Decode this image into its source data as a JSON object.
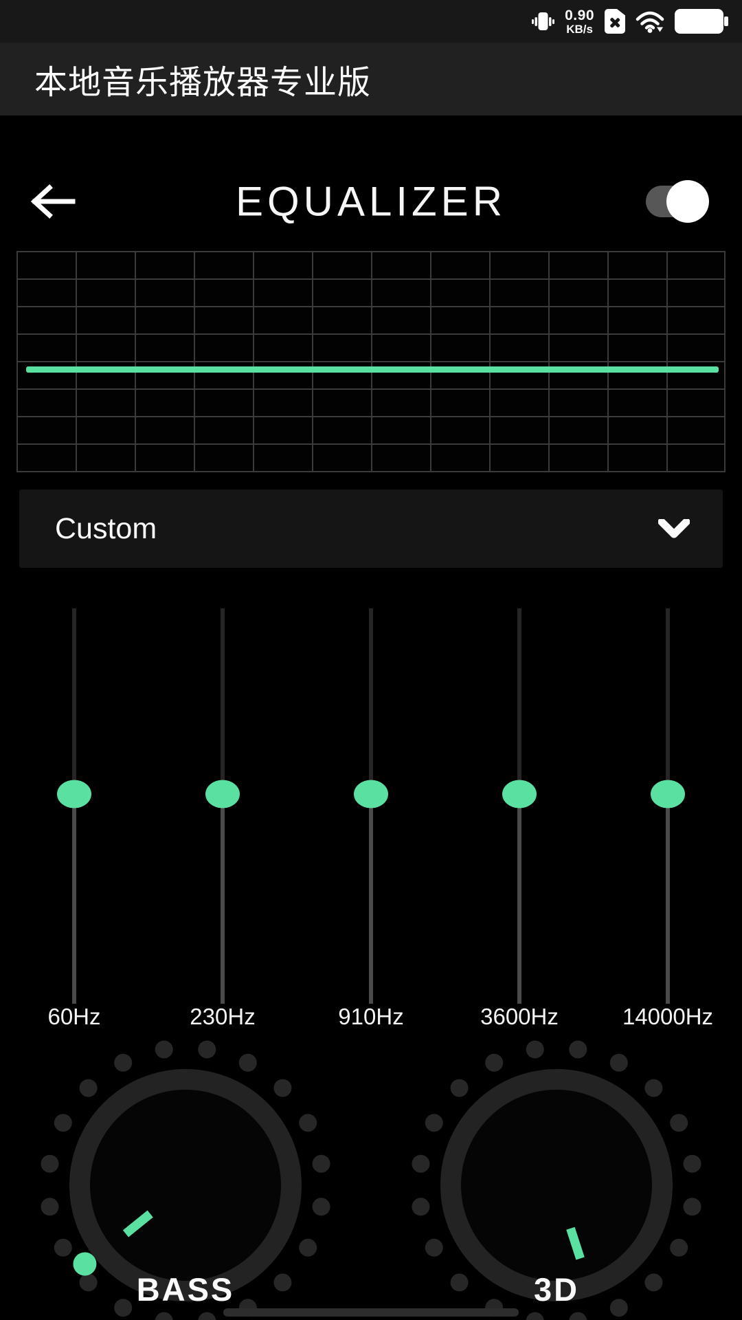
{
  "colors": {
    "accent": "#5ae0a0",
    "background": "#000000",
    "status_bar_bg": "#181818",
    "app_bar_bg": "#212121",
    "panel_bg": "#151515"
  },
  "status_bar": {
    "network_speed_value": "0.90",
    "network_speed_unit": "KB/s",
    "icons": [
      "vibrate-icon",
      "sim-error-icon",
      "wifi-icon",
      "battery-full-icon"
    ]
  },
  "app_bar": {
    "title": "本地音乐播放器专业版"
  },
  "equalizer": {
    "screen_title": "EQUALIZER",
    "enabled": true,
    "curve_level_pct": 53.6,
    "preset_label": "Custom",
    "bands": [
      {
        "label": "60Hz",
        "level_pct": 47
      },
      {
        "label": "230Hz",
        "level_pct": 47
      },
      {
        "label": "910Hz",
        "level_pct": 47
      },
      {
        "label": "3600Hz",
        "level_pct": 47
      },
      {
        "label": "14000Hz",
        "level_pct": 47
      }
    ],
    "knobs": [
      {
        "label": "BASS",
        "indicator_angle_deg": 141,
        "marker_angle_deg": 142
      },
      {
        "label": "3D",
        "indicator_angle_deg": 72,
        "marker_angle_deg": null
      }
    ]
  }
}
